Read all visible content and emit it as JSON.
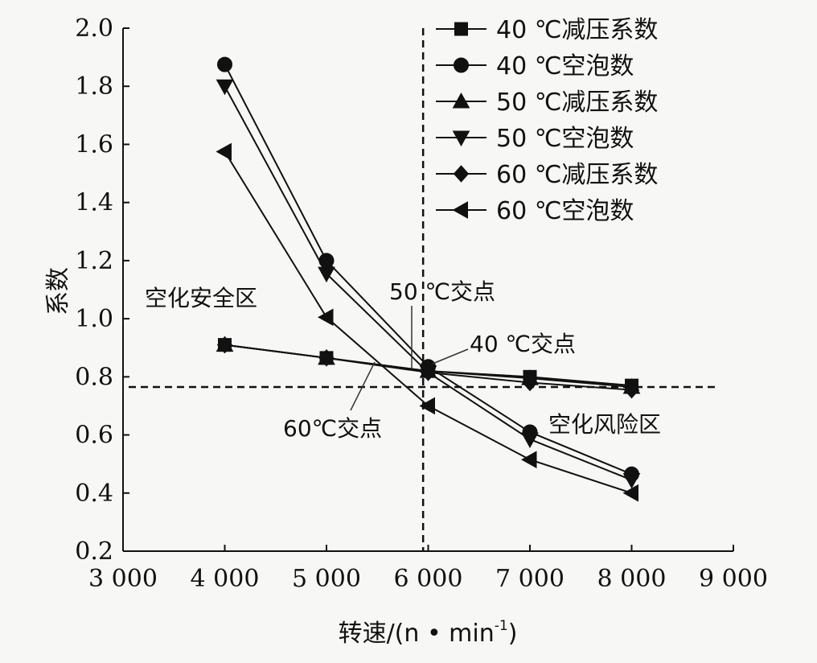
{
  "chart_data": {
    "type": "line",
    "title": "",
    "xlabel": "转速/(n • min",
    "xlabel_sup": "-1",
    "xlabel_close": ")",
    "ylabel": "系数",
    "xlim": [
      3000,
      9000
    ],
    "ylim": [
      0.2,
      2.0
    ],
    "x_ticks": [
      3000,
      4000,
      5000,
      6000,
      7000,
      8000,
      9000
    ],
    "x_tick_labels": [
      "3 000",
      "4 000",
      "5 000",
      "6 000",
      "7 000",
      "8 000",
      "9 000"
    ],
    "y_ticks": [
      0.2,
      0.4,
      0.6,
      0.8,
      1.0,
      1.2,
      1.4,
      1.6,
      1.8,
      2.0
    ],
    "y_tick_labels": [
      "0.2",
      "0.4",
      "0.6",
      "0.8",
      "1.0",
      "1.2",
      "1.4",
      "1.6",
      "1.8",
      "2.0"
    ],
    "x": [
      4000,
      5000,
      6000,
      7000,
      8000
    ],
    "series": [
      {
        "name": "40 ℃减压系数",
        "marker": "square",
        "values": [
          0.91,
          0.865,
          0.82,
          0.8,
          0.77
        ]
      },
      {
        "name": "40 ℃空泡数",
        "marker": "circle",
        "values": [
          1.875,
          1.2,
          0.835,
          0.61,
          0.465
        ]
      },
      {
        "name": "50 ℃减压系数",
        "marker": "triangle-up",
        "values": [
          0.91,
          0.865,
          0.82,
          0.795,
          0.765
        ]
      },
      {
        "name": "50 ℃空泡数",
        "marker": "triangle-down",
        "values": [
          1.8,
          1.155,
          0.815,
          0.585,
          0.445
        ]
      },
      {
        "name": "60 ℃减压系数",
        "marker": "diamond",
        "values": [
          0.91,
          0.865,
          0.815,
          0.78,
          0.755
        ]
      },
      {
        "name": "60 ℃空泡数",
        "marker": "triangle-left",
        "values": [
          1.575,
          1.005,
          0.7,
          0.515,
          0.4
        ]
      }
    ],
    "reference_lines": {
      "vertical_x": 5950,
      "horizontal_y": 0.765
    },
    "annotations": {
      "safe_zone": "空化安全区",
      "risk_zone": "空化风险区",
      "cross_50": "50 ℃交点",
      "cross_40": "40 ℃交点",
      "cross_60": "60℃交点"
    },
    "legend_position": "top-right",
    "grid": false
  }
}
